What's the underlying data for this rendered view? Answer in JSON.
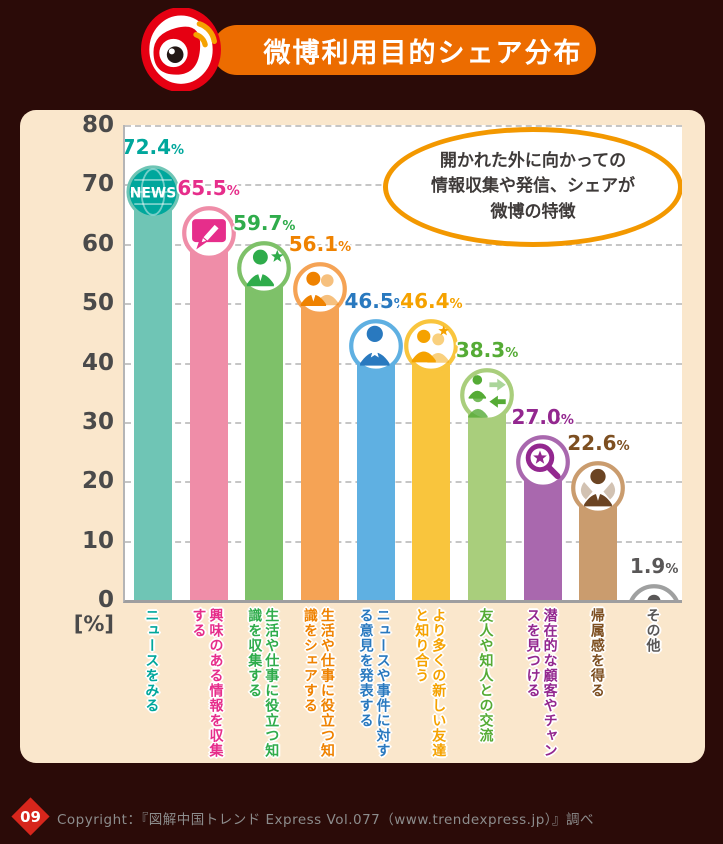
{
  "page": {
    "background": "#2b0b08"
  },
  "header": {
    "title": "微博利用目的シェア分布",
    "banner_color": "#ec6c00",
    "logo": "weibo-logo",
    "logo_colors": {
      "ring": "#e60012",
      "body": "#e60012",
      "signal": "#f5a200"
    }
  },
  "annotation": {
    "lines": [
      "開かれた外に向かっての",
      "情報収集や発信、シェアが",
      "微博の特徴"
    ],
    "border_color": "#f39800",
    "text_color": "#3e3a39"
  },
  "chart_data": {
    "type": "bar",
    "title": "微博利用目的シェア分布",
    "xlabel": "",
    "ylabel": "[%]",
    "unit_label": "[%]",
    "ylim": [
      0,
      80
    ],
    "yticks": [
      80,
      70,
      60,
      50,
      40,
      30,
      20,
      10,
      0
    ],
    "grid": "horizontal-dashed",
    "legend": "none",
    "categories": [
      "ニュースをみる",
      "興味のある情報を収集する",
      "生活や仕事に役立つ知識を収集する",
      "生活や仕事に役立つ知識をシェアする",
      "ニュースや事件に対する意見を発表する",
      "より多くの新しい友達と知り合う",
      "友人や知人との交流",
      "潜在的な顧客やチャンスを見つける",
      "帰属感を得る",
      "その他"
    ],
    "values": [
      72.4,
      65.5,
      59.7,
      56.1,
      46.5,
      46.4,
      38.3,
      27.0,
      22.6,
      1.9
    ],
    "bars": [
      {
        "category": "ニュースをみる",
        "value": 72.4,
        "display": "72.4",
        "bar_color": "#6fc5b5",
        "accent_color": "#00a79c",
        "icon": "news-icon"
      },
      {
        "category": "興味のある情報を収集する",
        "value": 65.5,
        "display": "65.5",
        "bar_color": "#ef8da8",
        "accent_color": "#e62e8b",
        "icon": "pencil-bubble-icon"
      },
      {
        "category": "生活や仕事に役立つ知識を収集する",
        "value": 59.7,
        "display": "59.7",
        "bar_color": "#7ec169",
        "accent_color": "#2fac4b",
        "icon": "person-star-icon"
      },
      {
        "category": "生活や仕事に役立つ知識をシェアする",
        "value": 56.1,
        "display": "56.1",
        "bar_color": "#f5a355",
        "accent_color": "#ef8200",
        "icon": "two-people-icon"
      },
      {
        "category": "ニュースや事件に対する意見を発表する",
        "value": 46.5,
        "display": "46.5",
        "bar_color": "#5fb0e2",
        "accent_color": "#2979bf",
        "icon": "person-white-star-icon"
      },
      {
        "category": "より多くの新しい友達と知り合う",
        "value": 46.4,
        "display": "46.4",
        "bar_color": "#f9c53d",
        "accent_color": "#f5a200",
        "icon": "two-people-star-icon"
      },
      {
        "category": "友人や知人との交流",
        "value": 38.3,
        "display": "38.3",
        "bar_color": "#a9ce7c",
        "accent_color": "#55ab35",
        "icon": "people-exchange-icon"
      },
      {
        "category": "潜在的な顧客やチャンスを見つける",
        "value": 27.0,
        "display": "27.0",
        "bar_color": "#a968ae",
        "accent_color": "#93278f",
        "icon": "magnifier-star-icon"
      },
      {
        "category": "帰属感を得る",
        "value": 22.6,
        "display": "22.6",
        "bar_color": "#ca9c6e",
        "accent_color": "#7d4f21",
        "icon": "person-wings-icon"
      },
      {
        "category": "その他",
        "value": 1.9,
        "display": "1.9",
        "bar_color": "#9fa0a0",
        "accent_color": "#595757",
        "icon": "person-gray-icon"
      }
    ]
  },
  "footer": {
    "badge": "09",
    "badge_color": "#d7261c",
    "copyright": "Copyright：『図解中国トレンド Express Vol.077（www.trendexpress.jp）』調べ"
  }
}
